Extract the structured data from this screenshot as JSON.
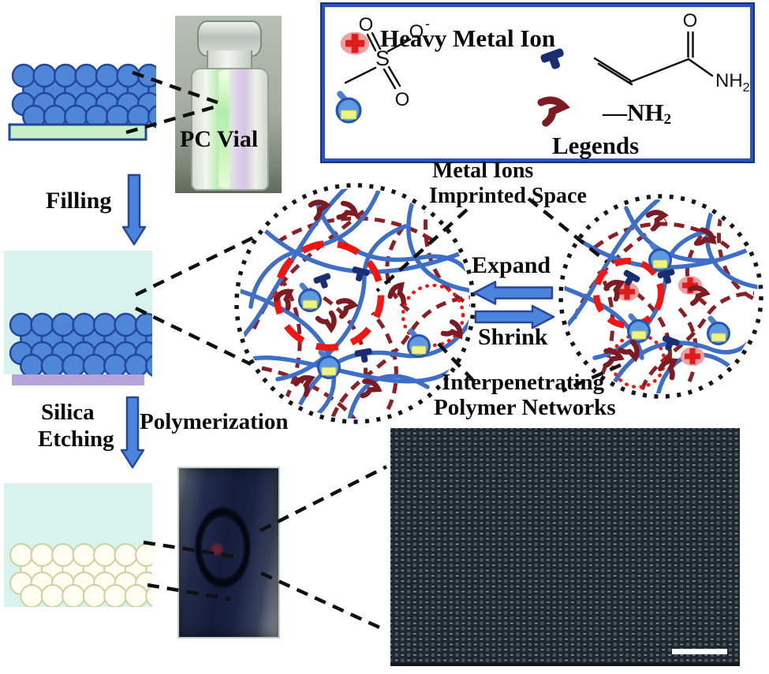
{
  "colors": {
    "network-blue": "#3d6fc9",
    "network-maroon": "#8b2126",
    "hook-maroon": "#7d1a22",
    "accent-red": "#f21511",
    "navy": "#1b2d72",
    "arrow-fill": "#4b84dc",
    "arrow-stroke": "#26479c",
    "legend-border": "#2a52c4",
    "sphere-fill": "#4f86d8",
    "sphere-stroke": "#21489e",
    "substrate-green": "#c9efc9",
    "block-cyan": "#d8f3ee",
    "block-lavender": "#b5a4da",
    "ion-pink": "#efa0a0",
    "ion-red": "#e01b1b",
    "probe-fill": "#5d9ae0",
    "probe-yellow": "#eff384",
    "pore-dark": "#1d272d",
    "sem-base": "#97adb6"
  },
  "labels": {
    "pc_vial": "PC Vial",
    "filling": "Filling",
    "silica_1": "Silica",
    "silica_2": "Etching",
    "polymerization": "Polymerization",
    "metal_ions_1": "Metal Ions",
    "metal_ions_2": "Imprinted Space",
    "expand": "Expand",
    "shrink": "Shrink",
    "ipn_1": "Interpenetrating",
    "ipn_2": "Polymer Networks"
  },
  "legend": {
    "heavy_metal_ion": "Heavy Metal Ion",
    "legends_label": "Legends",
    "amine_dash": "—NH",
    "amine_sub": "2",
    "acrylamide": {
      "o": "O",
      "n": "NH",
      "n_sub": "2"
    },
    "sulfonate": {
      "o_top": "O",
      "o_side": "O",
      "o_side_charge": "-",
      "s": "S",
      "o_bottom": "O"
    }
  }
}
